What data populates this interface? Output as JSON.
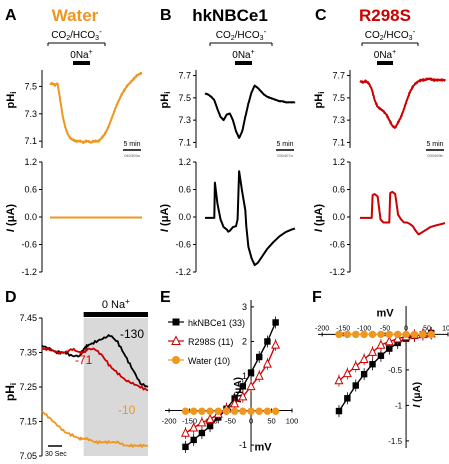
{
  "chart_data": [
    {
      "panel": "A",
      "title": "Water",
      "type": "line",
      "protocol_labels": [
        "CO2/HCO3-",
        "0Na+"
      ],
      "ph_axis": {
        "label": "pHi",
        "ticks": [
          7.1,
          7.3,
          7.5
        ]
      },
      "ph_trace": {
        "x_min": [
          0,
          1,
          2,
          3,
          4,
          5,
          6,
          7,
          8,
          9,
          10,
          11,
          12,
          13,
          14,
          15,
          16,
          17,
          18,
          19,
          20,
          21,
          22,
          23,
          24,
          25,
          26,
          27,
          28,
          29,
          30,
          31,
          32,
          33,
          34,
          35,
          36
        ],
        "y": [
          7.52,
          7.52,
          7.51,
          7.52,
          7.4,
          7.28,
          7.2,
          7.15,
          7.12,
          7.11,
          7.1,
          7.1,
          7.1,
          7.09,
          7.1,
          7.1,
          7.09,
          7.1,
          7.1,
          7.1,
          7.12,
          7.14,
          7.17,
          7.21,
          7.26,
          7.31,
          7.36,
          7.4,
          7.44,
          7.47,
          7.5,
          7.52,
          7.54,
          7.56,
          7.58,
          7.59,
          7.6
        ]
      },
      "scale_bar": "5 min",
      "scale_id": "040309a",
      "current_axis": {
        "label": "I (μA)",
        "ticks": [
          1.2,
          0.6,
          0.0,
          -0.6,
          -1.2
        ]
      },
      "current_trace": {
        "x_min": [
          0,
          36
        ],
        "y": [
          -0.01,
          -0.01
        ]
      }
    },
    {
      "panel": "B",
      "title": "hkNBCe1",
      "type": "line",
      "protocol_labels": [
        "CO2/HCO3-",
        "0Na+"
      ],
      "ph_axis": {
        "label": "pHi",
        "ticks": [
          7.1,
          7.3,
          7.5,
          7.7
        ]
      },
      "ph_trace": {
        "x_min": [
          0,
          1,
          2,
          3,
          4,
          5,
          6,
          7,
          8,
          9,
          10,
          11,
          12,
          13,
          14,
          15,
          16,
          17,
          18,
          19,
          20,
          21,
          22,
          23,
          24,
          25,
          26,
          27,
          28,
          29
        ],
        "y": [
          7.54,
          7.53,
          7.51,
          7.48,
          7.4,
          7.33,
          7.3,
          7.35,
          7.36,
          7.3,
          7.2,
          7.14,
          7.2,
          7.33,
          7.45,
          7.55,
          7.61,
          7.59,
          7.56,
          7.53,
          7.51,
          7.5,
          7.49,
          7.48,
          7.47,
          7.47,
          7.46,
          7.46,
          7.46,
          7.46
        ]
      },
      "scale_bar": "5 min",
      "scale_id": "030407a",
      "current_axis": {
        "label": "I (μA)",
        "ticks": [
          1.2,
          0.6,
          0.0,
          -0.6,
          -1.2
        ]
      },
      "current_trace": {
        "x_min": [
          0,
          1,
          2,
          3,
          3.2,
          4,
          5,
          6,
          7,
          7.5,
          8,
          9,
          10,
          10.5,
          11,
          12,
          13,
          13.3,
          14,
          15,
          16,
          17,
          18,
          20,
          22,
          24,
          26,
          28,
          29
        ],
        "y": [
          -0.02,
          -0.02,
          -0.02,
          -0.02,
          0.75,
          0.3,
          -0.05,
          -0.22,
          -0.27,
          -0.32,
          -0.3,
          -0.22,
          -0.2,
          -0.05,
          1.0,
          0.55,
          0.15,
          -0.2,
          -0.65,
          -0.9,
          -1.05,
          -1.0,
          -0.9,
          -0.7,
          -0.55,
          -0.42,
          -0.33,
          -0.27,
          -0.25
        ]
      }
    },
    {
      "panel": "C",
      "title": "R298S",
      "type": "line",
      "protocol_labels": [
        "CO2/HCO3-",
        "0Na+"
      ],
      "ph_axis": {
        "label": "pHi",
        "ticks": [
          7.1,
          7.3,
          7.5,
          7.7
        ]
      },
      "ph_trace": {
        "x_min": [
          0,
          1,
          2,
          3,
          4,
          5,
          6,
          7,
          8,
          9,
          10,
          11,
          12,
          13,
          14,
          15,
          16,
          17,
          18,
          19,
          20,
          21,
          22,
          23,
          24,
          25,
          26,
          27,
          28,
          29
        ],
        "y": [
          7.65,
          7.64,
          7.65,
          7.63,
          7.58,
          7.48,
          7.42,
          7.4,
          7.38,
          7.35,
          7.3,
          7.25,
          7.23,
          7.28,
          7.33,
          7.4,
          7.48,
          7.55,
          7.6,
          7.63,
          7.65,
          7.66,
          7.66,
          7.67,
          7.67,
          7.66,
          7.66,
          7.66,
          7.66,
          7.66
        ]
      },
      "scale_bar": "5 min",
      "scale_id": "030409b",
      "current_axis": {
        "label": "I (μA)",
        "ticks": [
          1.2,
          0.6,
          0.0,
          -0.6,
          -1.2
        ]
      },
      "current_trace": {
        "x_min": [
          0,
          1,
          2,
          3,
          4,
          4.3,
          5,
          6,
          7,
          8,
          9,
          10,
          10.3,
          11,
          12,
          13,
          14,
          15,
          16,
          17,
          18,
          19,
          20,
          22,
          24,
          26,
          28,
          29
        ],
        "y": [
          -0.02,
          -0.02,
          -0.02,
          -0.02,
          -0.02,
          0.48,
          0.5,
          0.45,
          -0.05,
          -0.12,
          -0.12,
          -0.12,
          0.52,
          0.55,
          0.5,
          0.05,
          -0.05,
          -0.12,
          -0.12,
          -0.15,
          -0.2,
          -0.3,
          -0.38,
          -0.3,
          -0.22,
          -0.18,
          -0.15,
          -0.13
        ]
      }
    },
    {
      "panel": "D",
      "type": "line",
      "protocol_label": "0 Na+",
      "ylabel": "pHi",
      "yticks": [
        7.05,
        7.15,
        7.25,
        7.35,
        7.45
      ],
      "ylim": [
        7.05,
        7.45
      ],
      "scale_bar": "30 Sec",
      "series": [
        {
          "name": "-130",
          "color": "#000000",
          "x_sec": [
            0,
            20,
            40,
            60,
            80,
            100,
            110,
            120,
            140,
            160,
            180,
            200,
            220,
            240,
            260,
            280
          ],
          "y": [
            7.37,
            7.36,
            7.35,
            7.35,
            7.34,
            7.34,
            7.36,
            7.37,
            7.38,
            7.39,
            7.4,
            7.38,
            7.34,
            7.3,
            7.26,
            7.25
          ]
        },
        {
          "name": "-71",
          "color": "#cc0000",
          "x_sec": [
            0,
            20,
            40,
            60,
            80,
            100,
            110,
            120,
            140,
            160,
            180,
            200,
            220,
            240,
            260,
            280
          ],
          "y": [
            7.36,
            7.36,
            7.35,
            7.35,
            7.36,
            7.35,
            7.35,
            7.36,
            7.36,
            7.34,
            7.31,
            7.29,
            7.27,
            7.26,
            7.25,
            7.24
          ]
        },
        {
          "name": "-10",
          "color": "#f0961e",
          "x_sec": [
            0,
            20,
            40,
            60,
            80,
            100,
            110,
            120,
            140,
            160,
            180,
            200,
            220,
            240,
            260,
            280
          ],
          "y": [
            7.18,
            7.16,
            7.14,
            7.12,
            7.11,
            7.1,
            7.1,
            7.1,
            7.09,
            7.09,
            7.09,
            7.09,
            7.08,
            7.08,
            7.08,
            7.08
          ]
        }
      ]
    },
    {
      "panel": "E",
      "type": "scatter",
      "xlabel": "mV",
      "ylabel": "I (μA)",
      "xticks": [
        -200,
        -150,
        -100,
        -50,
        0,
        50,
        100
      ],
      "yticks": [
        -1,
        1,
        2,
        3
      ],
      "xlim": [
        -210,
        100
      ],
      "ylim": [
        -1.2,
        3.2
      ],
      "series": [
        {
          "name": "hkNBCe1 (33)",
          "color": "#000000",
          "marker": "square",
          "x": [
            -160,
            -140,
            -120,
            -100,
            -80,
            -60,
            -40,
            -20,
            0,
            20,
            40,
            60
          ],
          "y": [
            -1.05,
            -0.85,
            -0.65,
            -0.45,
            -0.2,
            0.05,
            0.35,
            0.7,
            1.1,
            1.55,
            2.0,
            2.55
          ]
        },
        {
          "name": "R298S (11)",
          "color": "#cc0000",
          "marker": "triangle-open",
          "x": [
            -160,
            -140,
            -120,
            -100,
            -80,
            -60,
            -40,
            -20,
            0,
            20,
            40,
            60
          ],
          "y": [
            -0.65,
            -0.5,
            -0.35,
            -0.25,
            -0.1,
            0.05,
            0.2,
            0.4,
            0.7,
            1.0,
            1.35,
            1.9
          ]
        },
        {
          "name": "Water (10)",
          "color": "#f0961e",
          "marker": "circle",
          "x": [
            -160,
            -140,
            -120,
            -100,
            -80,
            -60,
            -40,
            -20,
            0,
            20,
            40,
            60
          ],
          "y": [
            -0.02,
            -0.02,
            -0.02,
            -0.02,
            -0.02,
            -0.02,
            -0.02,
            -0.02,
            -0.02,
            -0.02,
            -0.02,
            -0.02
          ]
        }
      ]
    },
    {
      "panel": "F",
      "type": "scatter",
      "xlabel": "mV",
      "ylabel": "I (μA)",
      "xticks": [
        -200,
        -150,
        -100,
        -50,
        0,
        50,
        100
      ],
      "yticks": [
        -0.5,
        -1,
        -1.5
      ],
      "xlim": [
        -210,
        100
      ],
      "ylim": [
        -1.6,
        0.4
      ],
      "series": [
        {
          "name": "hkNBCe1",
          "color": "#000000",
          "marker": "square",
          "x": [
            -160,
            -140,
            -120,
            -100,
            -80,
            -60,
            -40,
            -20,
            0,
            20,
            40,
            60
          ],
          "y": [
            -1.08,
            -0.9,
            -0.72,
            -0.56,
            -0.42,
            -0.3,
            -0.2,
            -0.12,
            -0.06,
            -0.02,
            0.0,
            0.02
          ]
        },
        {
          "name": "R298S",
          "color": "#cc0000",
          "marker": "triangle-open",
          "x": [
            -160,
            -140,
            -120,
            -100,
            -80,
            -60,
            -40,
            -20,
            0,
            20,
            40,
            60
          ],
          "y": [
            -0.65,
            -0.55,
            -0.45,
            -0.35,
            -0.25,
            -0.15,
            -0.1,
            -0.06,
            -0.03,
            -0.01,
            0.0,
            0.01
          ]
        },
        {
          "name": "Water",
          "color": "#f0961e",
          "marker": "circle",
          "x": [
            -160,
            -140,
            -120,
            -100,
            -80,
            -60,
            -40,
            -20,
            0,
            20,
            40,
            60
          ],
          "y": [
            0.0,
            0.0,
            0.0,
            0.0,
            0.0,
            0.0,
            0.0,
            0.0,
            0.0,
            0.0,
            0.0,
            0.0
          ]
        }
      ]
    }
  ],
  "colors": {
    "water": "#f0961e",
    "hknbce1": "#000000",
    "r298s": "#cc0000",
    "shade": "#d9d9d9"
  }
}
